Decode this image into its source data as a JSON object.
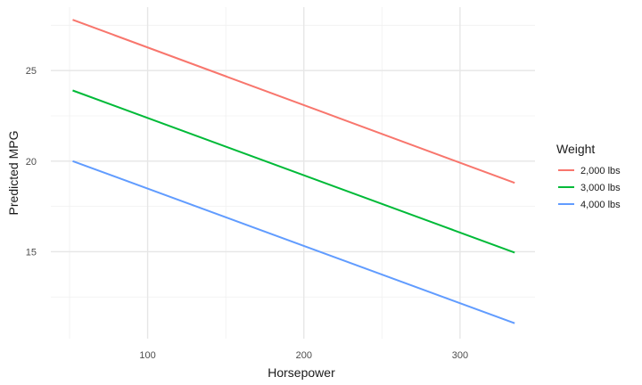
{
  "chart_data": {
    "type": "line",
    "title": "",
    "xlabel": "Horsepower",
    "ylabel": "Predicted MPG",
    "xlim": [
      38,
      348
    ],
    "ylim": [
      10.2,
      28.5
    ],
    "xticks": [
      100,
      200,
      300
    ],
    "yticks": [
      15,
      20,
      25
    ],
    "grid": true,
    "legend_title": "Weight",
    "legend_position": "right",
    "series": [
      {
        "name": "2,000 lbs",
        "color": "#F8766D",
        "x": [
          52,
          335
        ],
        "y": [
          27.8,
          18.8
        ]
      },
      {
        "name": "3,000 lbs",
        "color": "#00BA38",
        "x": [
          52,
          335
        ],
        "y": [
          23.9,
          14.95
        ]
      },
      {
        "name": "4,000 lbs",
        "color": "#619CFF",
        "x": [
          52,
          335
        ],
        "y": [
          20.0,
          11.05
        ]
      }
    ]
  }
}
